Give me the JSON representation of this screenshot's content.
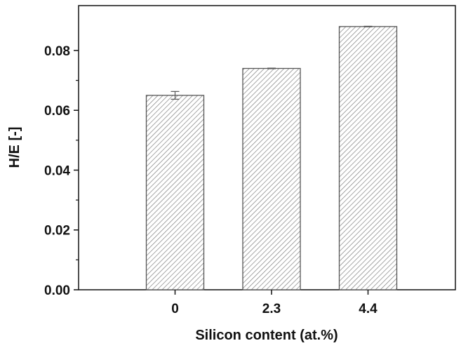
{
  "chart_data": {
    "type": "bar",
    "title": "",
    "xlabel": "Silicon content (at.%)",
    "ylabel": "H/E [-]",
    "categories": [
      "0",
      "2.3",
      "4.4"
    ],
    "values": [
      0.065,
      0.074,
      0.088
    ],
    "errors": [
      0.0013,
      0.0001,
      0.0001
    ],
    "ylim": [
      0,
      0.095
    ],
    "yticks": [
      "0.00",
      "0.02",
      "0.04",
      "0.06",
      "0.08"
    ],
    "ytick_values": [
      0,
      0.02,
      0.04,
      0.06,
      0.08
    ],
    "grid": false,
    "bar_fill": "hatched",
    "colors": {
      "bar_stroke": "#555555",
      "hatch": "#777777",
      "axis": "#111111"
    }
  }
}
